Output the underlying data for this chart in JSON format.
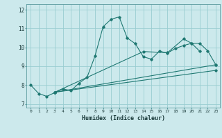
{
  "title": "",
  "xlabel": "Humidex (Indice chaleur)",
  "ylabel": "",
  "background_color": "#cce9ec",
  "grid_color": "#99cdd1",
  "line_color": "#1f7872",
  "xlim": [
    -0.5,
    23.5
  ],
  "ylim": [
    6.8,
    12.3
  ],
  "yticks": [
    7,
    8,
    9,
    10,
    11,
    12
  ],
  "xticks": [
    0,
    1,
    2,
    3,
    4,
    5,
    6,
    7,
    8,
    9,
    10,
    11,
    12,
    13,
    14,
    15,
    16,
    17,
    18,
    19,
    20,
    21,
    22,
    23
  ],
  "series": [
    {
      "x": [
        0,
        1,
        2,
        3,
        4,
        5,
        6,
        7,
        8,
        9,
        10,
        11,
        12,
        13,
        14,
        15,
        16,
        17,
        18,
        19,
        20,
        21
      ],
      "y": [
        8.0,
        7.55,
        7.4,
        7.6,
        7.8,
        7.7,
        8.1,
        8.4,
        9.55,
        11.1,
        11.5,
        11.62,
        10.5,
        10.2,
        9.5,
        9.38,
        9.8,
        9.7,
        9.95,
        10.1,
        10.22,
        9.8
      ]
    },
    {
      "x": [
        3,
        23
      ],
      "y": [
        7.62,
        8.78
      ]
    },
    {
      "x": [
        3,
        23
      ],
      "y": [
        7.62,
        9.08
      ]
    },
    {
      "x": [
        3,
        14,
        17,
        19,
        20,
        21,
        22,
        23
      ],
      "y": [
        7.62,
        9.78,
        9.72,
        10.45,
        10.22,
        10.22,
        9.82,
        9.08
      ]
    }
  ]
}
